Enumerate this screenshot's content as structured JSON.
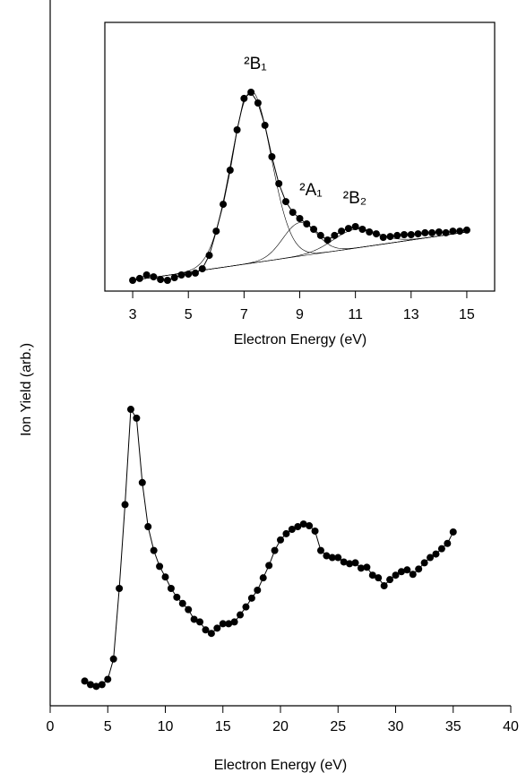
{
  "chart_data": [
    {
      "type": "line",
      "x_label": "Electron Energy (eV)",
      "y_label": "Ion Yield (arb.)",
      "xlim": [
        0,
        40
      ],
      "xticks": [
        0,
        5,
        10,
        15,
        20,
        25,
        30,
        35,
        40
      ],
      "ylim": [
        0,
        80
      ],
      "yticks": [],
      "series": [
        {
          "color": "#000000",
          "x": [
            3,
            3.5,
            4,
            4.5,
            5,
            5.5,
            6,
            6.5,
            7,
            7.5,
            8,
            8.5,
            9,
            9.5,
            10,
            10.5,
            11,
            11.5,
            12,
            12.5,
            13,
            13.5,
            14,
            14.5,
            15,
            15.5,
            16,
            16.5,
            17,
            17.5,
            18,
            18.5,
            19,
            19.5,
            20,
            20.5,
            21,
            21.5,
            22,
            22.5,
            23,
            23.5,
            24,
            24.5,
            25,
            25.5,
            26,
            26.5,
            27,
            27.5,
            28,
            28.5,
            29,
            29.5,
            30,
            30.5,
            31,
            31.5,
            32,
            32.5,
            33,
            33.5,
            34,
            34.5,
            35
          ],
          "values": [
            2.8,
            2.4,
            2.2,
            2.4,
            3.0,
            5.3,
            13.3,
            22.8,
            33.6,
            32.6,
            25.3,
            20.3,
            17.6,
            15.8,
            14.6,
            13.3,
            12.3,
            11.6,
            10.9,
            9.8,
            9.5,
            8.6,
            8.2,
            8.8,
            9.3,
            9.3,
            9.5,
            10.3,
            11.2,
            12.2,
            13.1,
            14.5,
            15.9,
            17.6,
            18.8,
            19.5,
            20.0,
            20.3,
            20.6,
            20.4,
            19.8,
            17.6,
            17.0,
            16.8,
            16.8,
            16.3,
            16.1,
            16.2,
            15.6,
            15.7,
            14.8,
            14.5,
            13.6,
            14.3,
            14.8,
            15.2,
            15.4,
            14.9,
            15.5,
            16.2,
            16.8,
            17.2,
            17.8,
            18.4,
            19.7
          ]
        }
      ]
    },
    {
      "type": "line",
      "x_label": "Electron Energy (eV)",
      "xlim": [
        2,
        16
      ],
      "xticks": [
        3,
        5,
        7,
        9,
        11,
        13,
        15
      ],
      "ylim": [
        0,
        100
      ],
      "yticks": [],
      "series": [
        {
          "color": "#000000",
          "x": [
            3,
            3.25,
            3.5,
            3.75,
            4,
            4.25,
            4.5,
            4.75,
            5,
            5.25,
            5.5,
            5.75,
            6,
            6.25,
            6.5,
            6.75,
            7,
            7.25,
            7.5,
            7.75,
            8,
            8.25,
            8.5,
            8.75,
            9,
            9.25,
            9.5,
            9.75,
            10,
            10.25,
            10.5,
            10.75,
            11,
            11.25,
            11.5,
            11.75,
            12,
            12.25,
            12.5,
            12.75,
            13,
            13.25,
            13.5,
            13.75,
            14,
            14.25,
            14.5,
            14.75,
            15
          ],
          "values": [
            4.0,
            4.7,
            6.0,
            5.3,
            4.3,
            4.0,
            5.0,
            6.0,
            6.3,
            6.7,
            8.3,
            13.3,
            22.3,
            32.3,
            45.0,
            60.0,
            71.7,
            74.0,
            70.0,
            61.7,
            50.0,
            40.0,
            33.3,
            29.3,
            27.0,
            25.0,
            23.0,
            20.7,
            19.0,
            20.7,
            22.3,
            23.3,
            24.0,
            23.0,
            22.0,
            21.3,
            20.0,
            20.3,
            20.7,
            21.0,
            21.0,
            21.3,
            21.7,
            21.7,
            22.0,
            21.7,
            22.3,
            22.3,
            22.7
          ]
        }
      ],
      "baseline": {
        "x": [
          3,
          15
        ],
        "values": [
          4.0,
          22.0
        ]
      },
      "fits": [
        {
          "center": 7.25,
          "height": 64,
          "width": 0.72
        },
        {
          "center": 9.0,
          "height": 12.5,
          "width": 0.6
        },
        {
          "center": 11.0,
          "height": 7,
          "width": 0.8
        }
      ],
      "annotations": [
        "²B₁",
        "²A₁",
        "²B₂"
      ]
    }
  ]
}
